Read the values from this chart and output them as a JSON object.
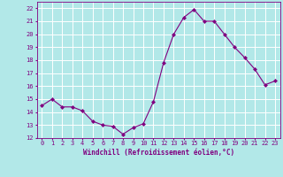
{
  "x": [
    0,
    1,
    2,
    3,
    4,
    5,
    6,
    7,
    8,
    9,
    10,
    11,
    12,
    13,
    14,
    15,
    16,
    17,
    18,
    19,
    20,
    21,
    22,
    23
  ],
  "y": [
    14.5,
    15.0,
    14.4,
    14.4,
    14.1,
    13.3,
    13.0,
    12.9,
    12.3,
    12.8,
    13.1,
    14.8,
    17.8,
    20.0,
    21.3,
    21.9,
    21.0,
    21.0,
    20.0,
    19.0,
    18.2,
    17.3,
    16.1,
    16.4
  ],
  "line_color": "#800080",
  "marker_color": "#800080",
  "bg_color": "#b2e8e8",
  "grid_color": "#d0d0d0",
  "xlabel": "Windchill (Refroidissement éolien,°C)",
  "xlabel_color": "#800080",
  "tick_color": "#800080",
  "ylim": [
    12,
    22.5
  ],
  "xlim": [
    -0.5,
    23.5
  ],
  "yticks": [
    12,
    13,
    14,
    15,
    16,
    17,
    18,
    19,
    20,
    21,
    22
  ],
  "xticks": [
    0,
    1,
    2,
    3,
    4,
    5,
    6,
    7,
    8,
    9,
    10,
    11,
    12,
    13,
    14,
    15,
    16,
    17,
    18,
    19,
    20,
    21,
    22,
    23
  ],
  "tick_fontsize": 5.0,
  "xlabel_fontsize": 5.5
}
